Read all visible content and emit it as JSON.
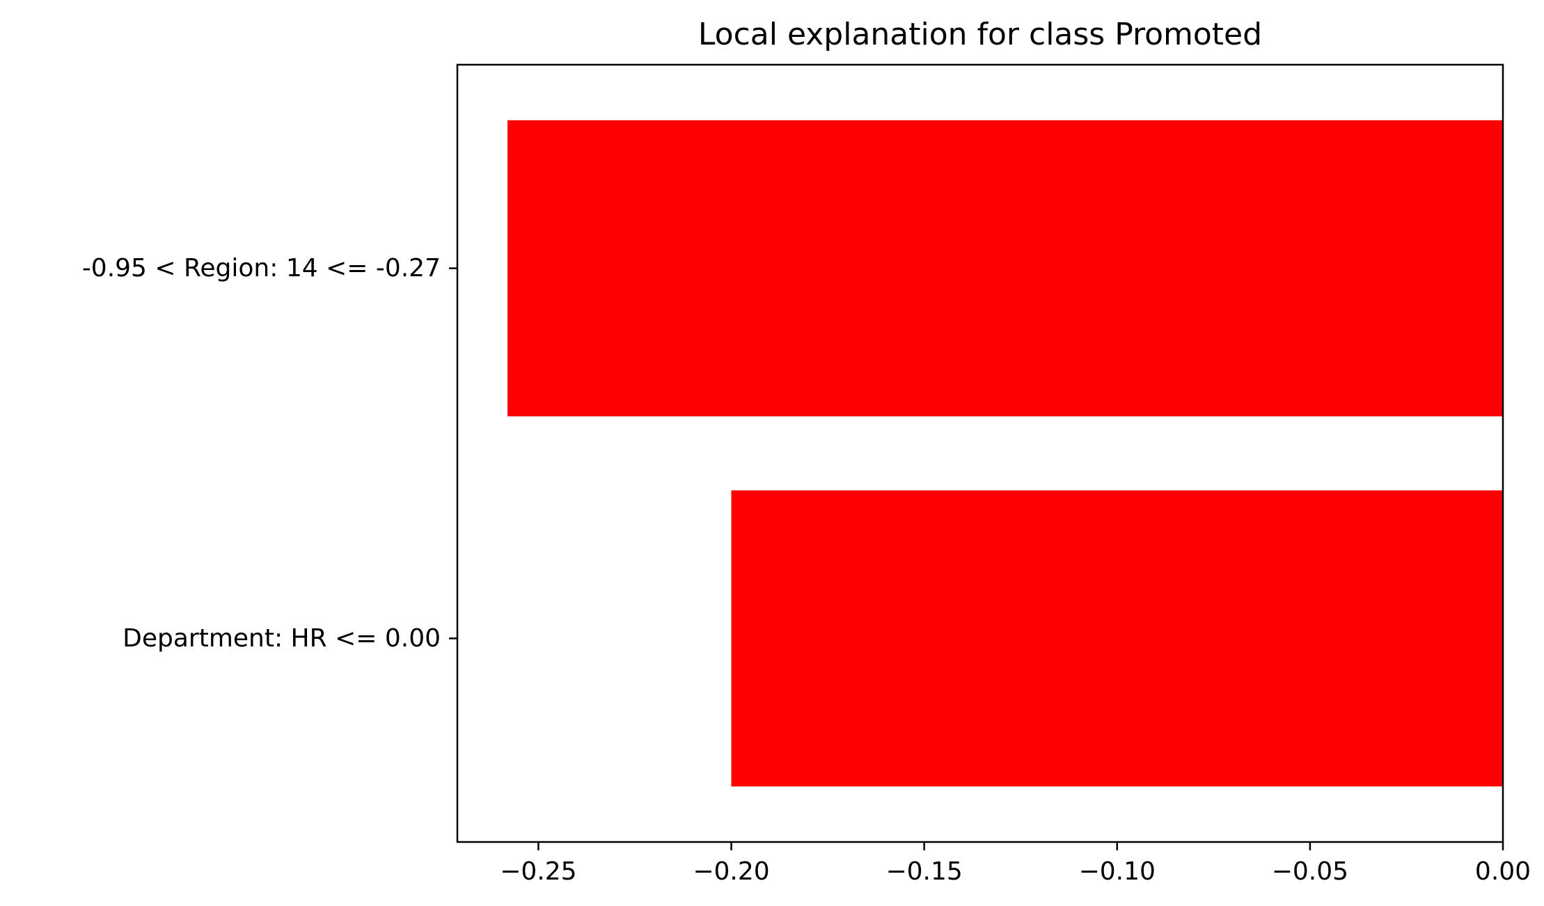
{
  "chart_data": {
    "type": "bar",
    "orientation": "horizontal",
    "title": "Local explanation for class Promoted",
    "xlabel": "",
    "ylabel": "",
    "categories": [
      "-0.95 < Region: 14 <= -0.27",
      "Department: HR <= 0.00"
    ],
    "values": [
      -0.258,
      -0.2
    ],
    "xlim": [
      -0.271,
      0.0
    ],
    "xticks": [
      -0.25,
      -0.2,
      -0.15,
      -0.1,
      -0.05,
      0.0
    ],
    "xtick_labels": [
      "−0.25",
      "−0.20",
      "−0.15",
      "−0.10",
      "−0.05",
      "0.00"
    ],
    "bar_color": "#ff0000",
    "grid": false,
    "legend": "none"
  }
}
